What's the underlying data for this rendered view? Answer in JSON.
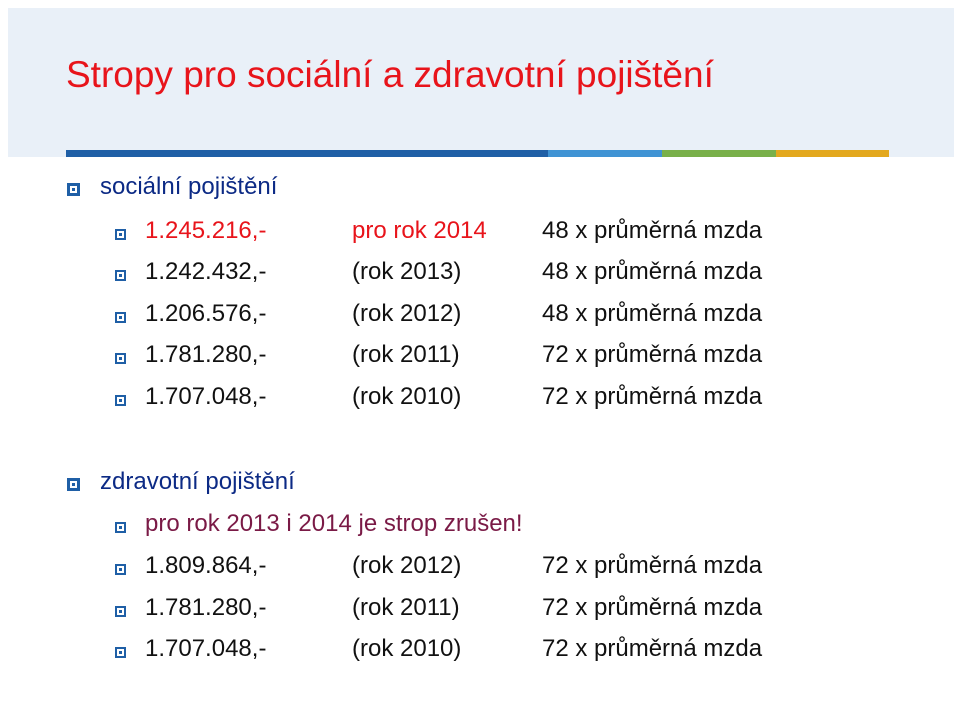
{
  "title": "Stropy pro sociální a zdravotní pojištění",
  "colors": {
    "title": "#e8141b",
    "section": "#0c2a85",
    "highlight": "#e8141b",
    "notice": "#7a1a46",
    "bullet": "#1f5fa6",
    "header_bg": "#e9f0f8",
    "accent_bar": [
      "#1f5fa6",
      "#3f93d4",
      "#79b04a",
      "#e3a81e"
    ]
  },
  "social": {
    "heading": "sociální pojištění",
    "rows": [
      {
        "amount": "1.245.216,-",
        "year": "pro rok 2014",
        "note": "48 x průměrná mzda"
      },
      {
        "amount": "1.242.432,-",
        "year": "(rok 2013)",
        "note": "48 x průměrná mzda"
      },
      {
        "amount": "1.206.576,-",
        "year": "(rok 2012)",
        "note": "48 x průměrná mzda"
      },
      {
        "amount": "1.781.280,-",
        "year": "(rok 2011)",
        "note": "72 x průměrná mzda"
      },
      {
        "amount": "1.707.048,-",
        "year": "(rok 2010)",
        "note": "72 x průměrná mzda"
      }
    ]
  },
  "health": {
    "heading": "zdravotní pojištění",
    "notice": "pro rok 2013 i 2014 je strop zrušen!",
    "rows": [
      {
        "amount": "1.809.864,-",
        "year": "(rok 2012)",
        "note": "72 x průměrná mzda"
      },
      {
        "amount": "1.781.280,-",
        "year": "(rok 2011)",
        "note": "72 x průměrná mzda"
      },
      {
        "amount": "1.707.048,-",
        "year": "(rok 2010)",
        "note": "72 x průměrná mzda"
      }
    ]
  }
}
